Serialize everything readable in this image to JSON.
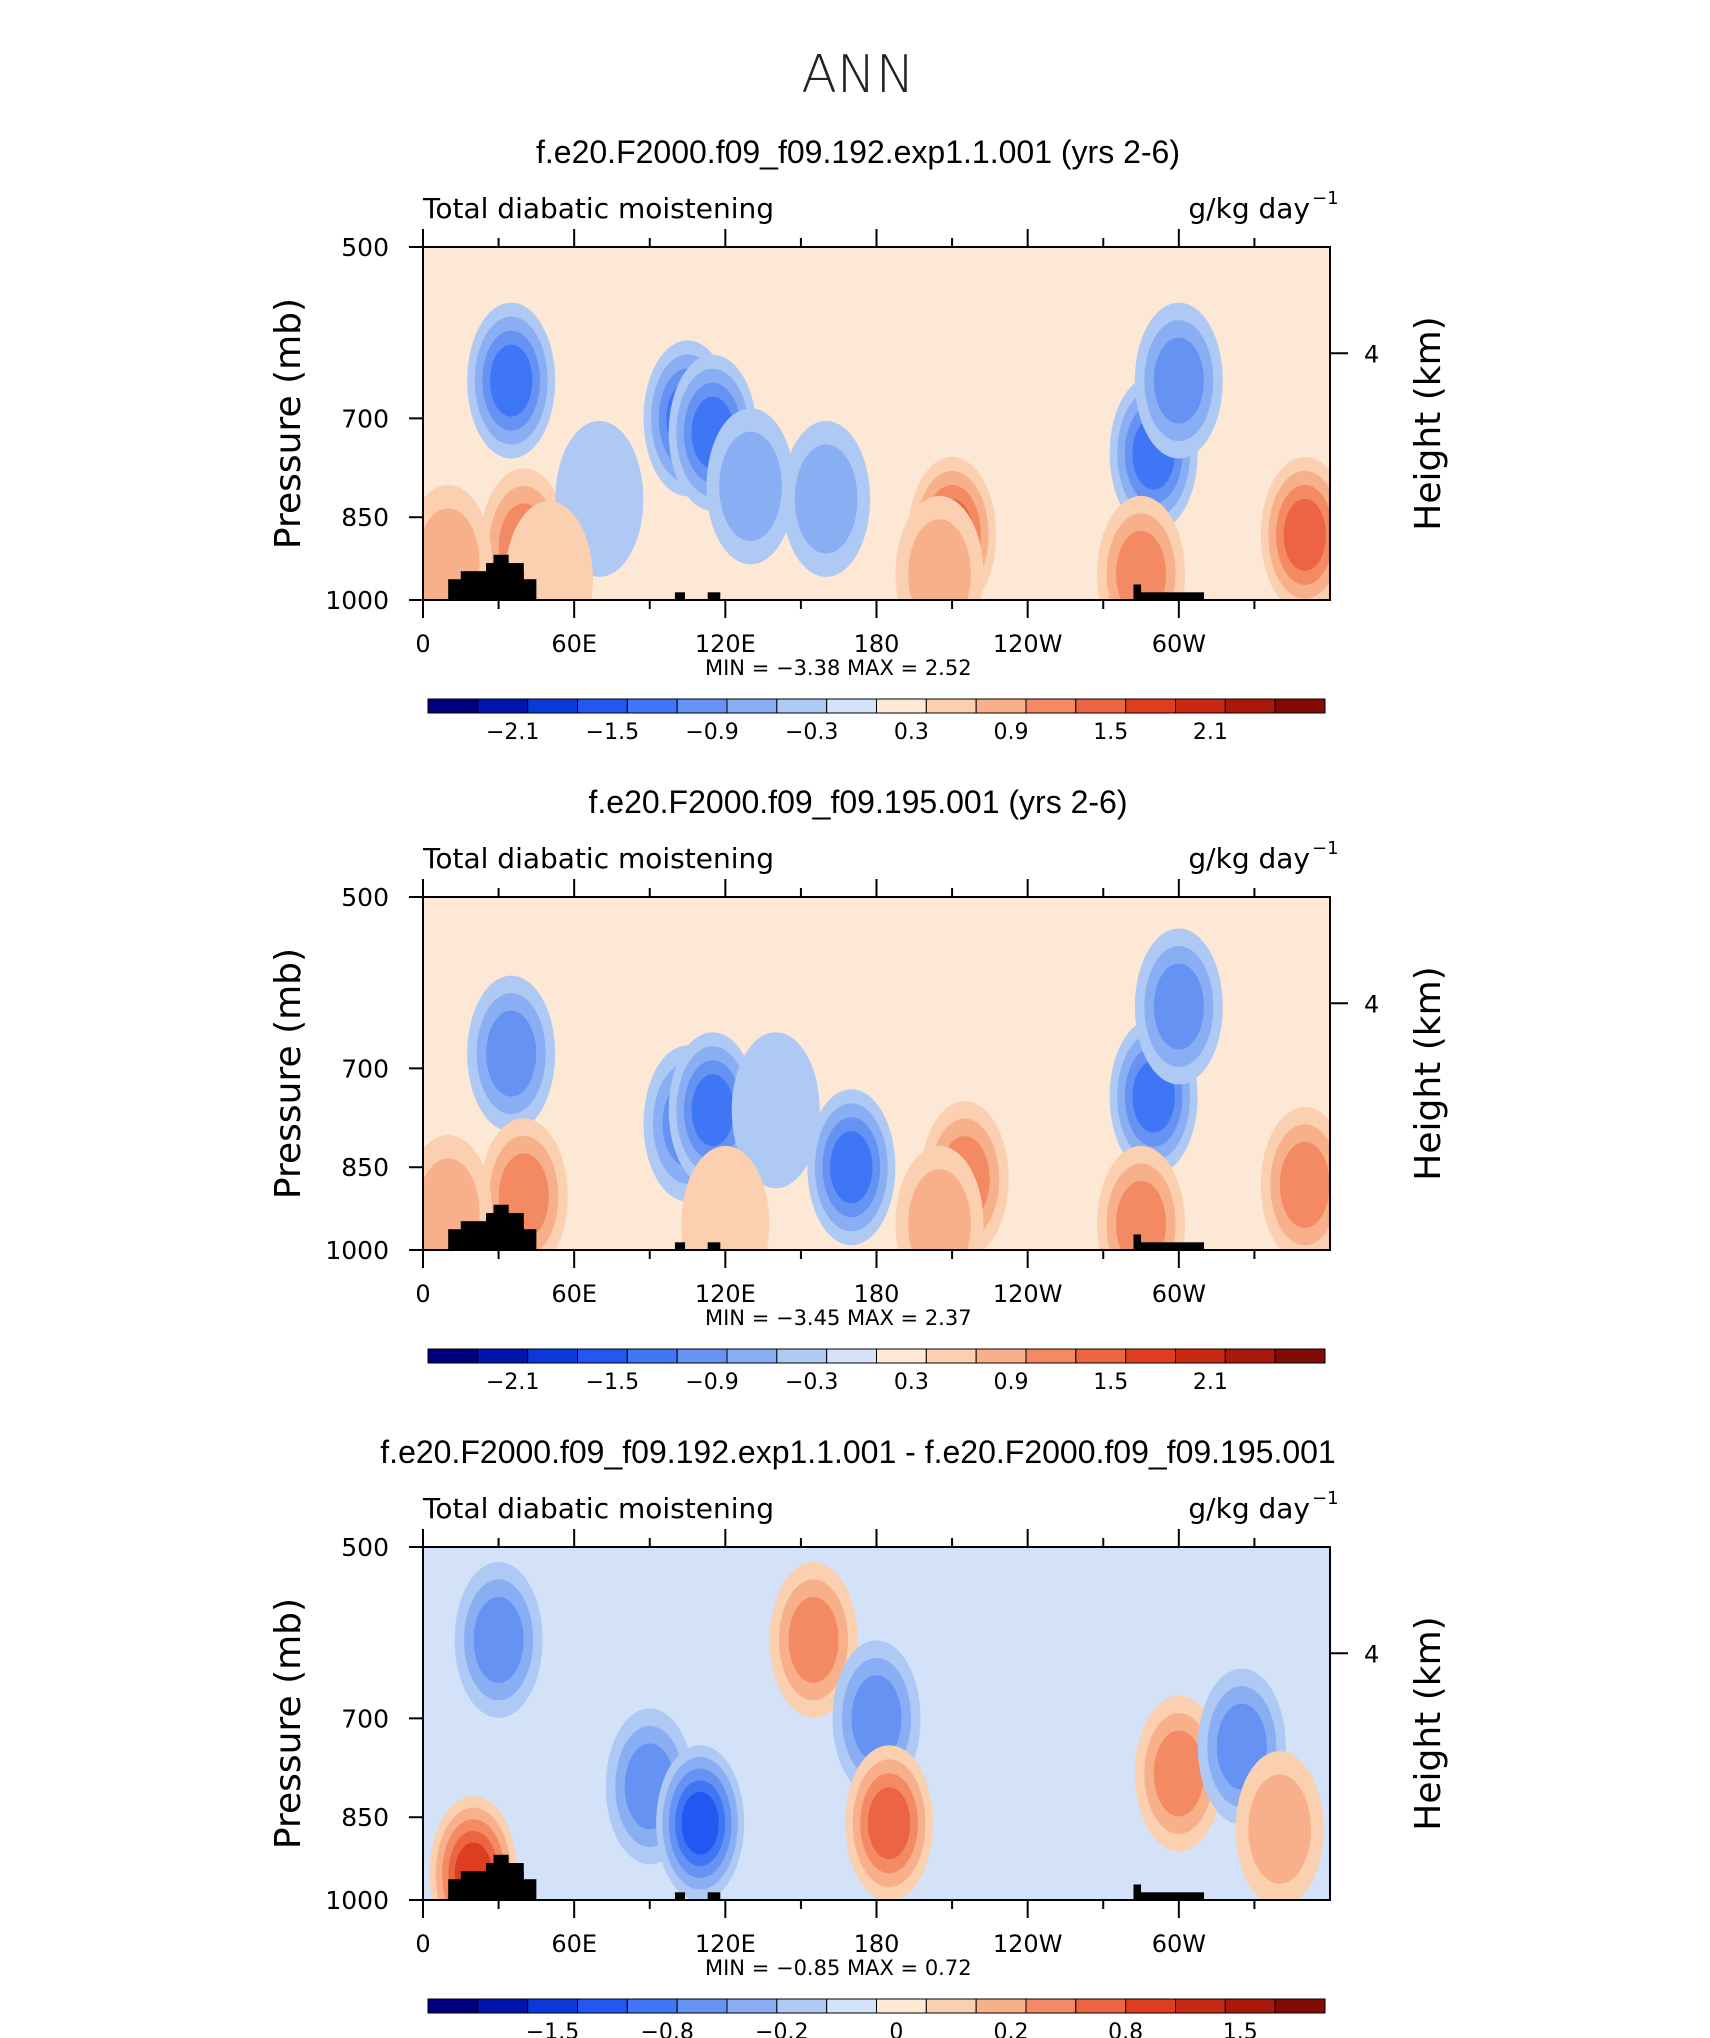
{
  "figure_title": "ANN",
  "chart_data": [
    {
      "type": "heatmap",
      "title": "f.e20.F2000.f09_f09.192.exp1.1.001 (yrs 2-6)",
      "left_label": "Total diabatic moistening",
      "units": "g/kg day",
      "units_exp": "−1",
      "ylabel": "Pressure (mb)",
      "ylabel_right": "Height (km)",
      "yticks": [
        "500",
        "700",
        "850",
        "1000"
      ],
      "yticks_right": [
        "4"
      ],
      "xticks": [
        "0",
        "60E",
        "120E",
        "180",
        "120W",
        "60W"
      ],
      "min_text": "MIN =   −3.38   MAX =   2.52",
      "min": -3.38,
      "max": 2.52,
      "colorbar_labels": [
        "−2.1",
        "−1.5",
        "−0.9",
        "−0.3",
        "0.3",
        "0.9",
        "1.5",
        "2.1"
      ],
      "features": [
        {
          "lon": 35,
          "p": 650,
          "v": -1.5
        },
        {
          "lon": 40,
          "p": 900,
          "v": 1.2
        },
        {
          "lon": 10,
          "p": 930,
          "v": 0.9
        },
        {
          "lon": 105,
          "p": 700,
          "v": -1.6
        },
        {
          "lon": 115,
          "p": 720,
          "v": -1.8
        },
        {
          "lon": 130,
          "p": 800,
          "v": -0.9
        },
        {
          "lon": 160,
          "p": 820,
          "v": -1.0
        },
        {
          "lon": 70,
          "p": 820,
          "v": -0.5
        },
        {
          "lon": 210,
          "p": 880,
          "v": 1.6
        },
        {
          "lon": 205,
          "p": 950,
          "v": 0.9
        },
        {
          "lon": 290,
          "p": 750,
          "v": -1.8
        },
        {
          "lon": 300,
          "p": 650,
          "v": -1.4
        },
        {
          "lon": 285,
          "p": 950,
          "v": 1.3
        },
        {
          "lon": 350,
          "p": 880,
          "v": 1.5
        },
        {
          "lon": 50,
          "p": 960,
          "v": 0.5
        }
      ]
    },
    {
      "type": "heatmap",
      "title": "f.e20.F2000.f09_f09.195.001 (yrs 2-6)",
      "left_label": "Total diabatic moistening",
      "units": "g/kg day",
      "units_exp": "−1",
      "ylabel": "Pressure (mb)",
      "ylabel_right": "Height (km)",
      "yticks": [
        "500",
        "700",
        "850",
        "1000"
      ],
      "yticks_right": [
        "4"
      ],
      "xticks": [
        "0",
        "60E",
        "120E",
        "180",
        "120W",
        "60W"
      ],
      "min_text": "MIN =   −3.45   MAX =   2.37",
      "min": -3.45,
      "max": 2.37,
      "colorbar_labels": [
        "−2.1",
        "−1.5",
        "−0.9",
        "−0.3",
        "0.3",
        "0.9",
        "1.5",
        "2.1"
      ],
      "features": [
        {
          "lon": 35,
          "p": 680,
          "v": -1.3
        },
        {
          "lon": 40,
          "p": 900,
          "v": 1.2
        },
        {
          "lon": 10,
          "p": 930,
          "v": 0.9
        },
        {
          "lon": 105,
          "p": 780,
          "v": -1.2
        },
        {
          "lon": 115,
          "p": 760,
          "v": -1.6
        },
        {
          "lon": 170,
          "p": 850,
          "v": -1.6
        },
        {
          "lon": 140,
          "p": 760,
          "v": -0.5
        },
        {
          "lon": 215,
          "p": 870,
          "v": 1.5
        },
        {
          "lon": 205,
          "p": 950,
          "v": 0.8
        },
        {
          "lon": 290,
          "p": 740,
          "v": -1.9
        },
        {
          "lon": 300,
          "p": 620,
          "v": -1.4
        },
        {
          "lon": 285,
          "p": 950,
          "v": 1.3
        },
        {
          "lon": 350,
          "p": 880,
          "v": 1.5
        },
        {
          "lon": 120,
          "p": 950,
          "v": 0.4
        }
      ]
    },
    {
      "type": "heatmap",
      "title": "f.e20.F2000.f09_f09.192.exp1.1.001 - f.e20.F2000.f09_f09.195.001",
      "left_label": "Total diabatic moistening",
      "units": "g/kg day",
      "units_exp": "−1",
      "ylabel": "Pressure (mb)",
      "ylabel_right": "Height (km)",
      "yticks": [
        "500",
        "700",
        "850",
        "1000"
      ],
      "yticks_right": [
        "4"
      ],
      "xticks": [
        "0",
        "60E",
        "120E",
        "180",
        "120W",
        "60W"
      ],
      "min_text": "MIN =   −0.85   MAX =   0.72",
      "min": -0.85,
      "max": 0.72,
      "colorbar_labels": [
        "−1.5",
        "−0.8",
        "−0.2",
        "0",
        "0.2",
        "0.8",
        "1.5"
      ],
      "features": [
        {
          "lon": 30,
          "p": 600,
          "v": -0.3
        },
        {
          "lon": 20,
          "p": 950,
          "v": 0.5
        },
        {
          "lon": 90,
          "p": 800,
          "v": -0.3
        },
        {
          "lon": 110,
          "p": 860,
          "v": -0.5
        },
        {
          "lon": 155,
          "p": 600,
          "v": 0.35
        },
        {
          "lon": 180,
          "p": 700,
          "v": -0.3
        },
        {
          "lon": 185,
          "p": 860,
          "v": 0.45
        },
        {
          "lon": 300,
          "p": 780,
          "v": 0.3
        },
        {
          "lon": 325,
          "p": 740,
          "v": -0.3
        },
        {
          "lon": 340,
          "p": 870,
          "v": 0.2
        }
      ]
    }
  ]
}
